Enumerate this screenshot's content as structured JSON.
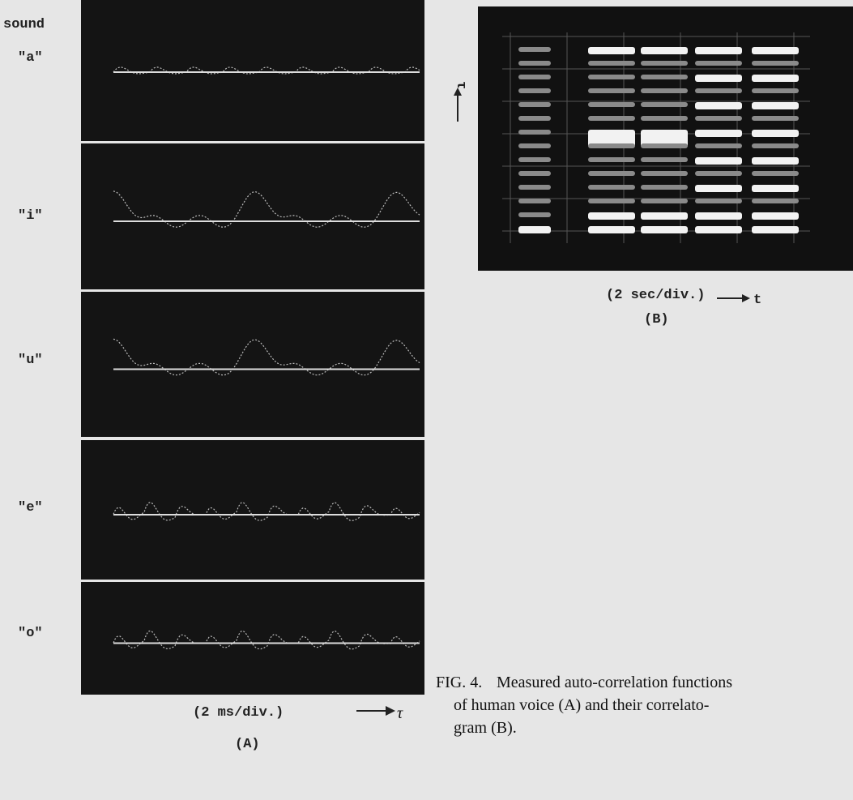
{
  "panel_a": {
    "row_header": "sound",
    "rows": [
      "\"a\"",
      "\"i\"",
      "\"u\"",
      "\"e\"",
      "\"o\""
    ],
    "scale": "(2 ms/div.)",
    "axis": "τ",
    "label": "(A)"
  },
  "panel_b": {
    "y_axis": "τ",
    "scale": "(2 sec/div.)",
    "axis": "t",
    "label": "(B)"
  },
  "caption": {
    "figure": "FIG. 4.",
    "lines": [
      "Measured auto-correlation functions",
      "of human voice (A) and their correlato-",
      "gram (B)."
    ]
  }
}
